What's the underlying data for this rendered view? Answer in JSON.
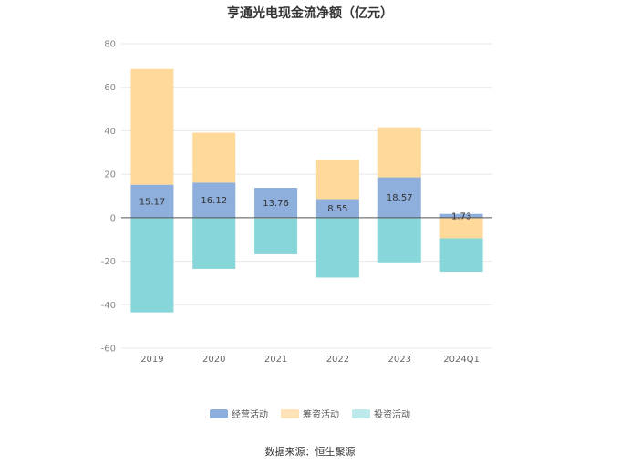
{
  "chart_data": {
    "type": "bar",
    "stacked": true,
    "title": "亨通光电现金流净额（亿元）",
    "categories": [
      "2019",
      "2020",
      "2021",
      "2022",
      "2023",
      "2024Q1"
    ],
    "series": [
      {
        "name": "经营活动",
        "color": "#8eaedc",
        "values": [
          15.17,
          16.12,
          13.76,
          8.55,
          18.57,
          1.73
        ]
      },
      {
        "name": "筹资活动",
        "color": "#ffd99a",
        "values": [
          53.2,
          23.0,
          -0.3,
          18.0,
          23.0,
          -9.5
        ]
      },
      {
        "name": "投资活动",
        "color": "#86d6da",
        "values": [
          -43.5,
          -23.5,
          -16.5,
          -27.5,
          -20.5,
          -15.3
        ]
      }
    ],
    "data_labels": [
      "15.17",
      "16.12",
      "13.76",
      "8.55",
      "18.57",
      "1.73"
    ],
    "ylim": [
      -60,
      80
    ],
    "yticks": [
      80,
      60,
      40,
      20,
      0,
      -20,
      -40,
      -60
    ],
    "grid": true,
    "legend_position": "bottom"
  },
  "legend": [
    {
      "label": "经营活动",
      "color": "#8eaedc"
    },
    {
      "label": "筹资活动",
      "color": "#ffe3b8"
    },
    {
      "label": "投资活动",
      "color": "#bde9eb"
    }
  ],
  "source_text": "数据来源：恒生聚源"
}
